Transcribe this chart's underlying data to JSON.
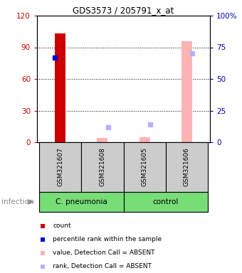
{
  "title": "GDS3573 / 205791_x_at",
  "samples": [
    "GSM321607",
    "GSM321608",
    "GSM321605",
    "GSM321606"
  ],
  "count_values": [
    103,
    null,
    null,
    null
  ],
  "count_color": "#cc0000",
  "percentile_values": [
    80,
    null,
    null,
    null
  ],
  "percentile_color": "#0000cc",
  "absent_value_values": [
    null,
    4,
    5,
    96
  ],
  "absent_value_color": "#ffb3b3",
  "absent_rank_values": [
    null,
    12,
    14,
    70
  ],
  "absent_rank_color": "#b3b3ff",
  "ylim_left": [
    0,
    120
  ],
  "ylim_right": [
    0,
    100
  ],
  "yticks_left": [
    0,
    30,
    60,
    90,
    120
  ],
  "yticks_right": [
    0,
    25,
    50,
    75,
    100
  ],
  "right_tick_labels": [
    "0",
    "25",
    "50",
    "75",
    "100%"
  ],
  "ylabel_left_color": "#cc0000",
  "ylabel_right_color": "#0000bb",
  "factor_label": "infection",
  "xlabel_area_color": "#cccccc",
  "green": "#77dd77",
  "legend_items": [
    {
      "label": "count",
      "color": "#cc0000"
    },
    {
      "label": "percentile rank within the sample",
      "color": "#0000cc"
    },
    {
      "label": "value, Detection Call = ABSENT",
      "color": "#ffb3b3"
    },
    {
      "label": "rank, Detection Call = ABSENT",
      "color": "#b3b3ff"
    }
  ]
}
